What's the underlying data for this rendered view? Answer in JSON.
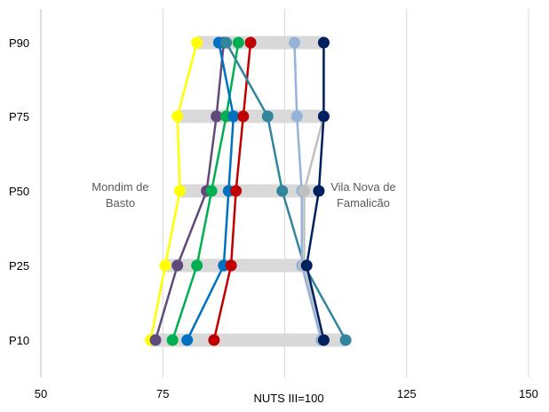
{
  "chart_data": {
    "type": "scatter",
    "title": "",
    "xlabel": "NUTS III=100",
    "ylabel": "",
    "xlim": [
      50,
      150
    ],
    "x_ticks": [
      50,
      75,
      125,
      150
    ],
    "x_gridlines": [
      50,
      75,
      100,
      125,
      150
    ],
    "y_categories": [
      "P10",
      "P25",
      "P50",
      "P75",
      "P90"
    ],
    "grid": true,
    "legend": "none",
    "annotations": [
      {
        "lines": [
          "Mondim de",
          "Basto"
        ],
        "anchor_series_index": 0
      },
      {
        "lines": [
          "Vila Nova de",
          "Famalicão"
        ],
        "anchor_series_index": 8
      }
    ],
    "series": [
      {
        "color": "#FFFF00",
        "values": [
          72.5,
          75.5,
          78.5,
          78,
          82
        ]
      },
      {
        "color": "#604A7B",
        "values": [
          73.5,
          78,
          84,
          86,
          87.5
        ]
      },
      {
        "color": "#00B050",
        "values": [
          77,
          82,
          85,
          88,
          90.5
        ]
      },
      {
        "color": "#0070C0",
        "values": [
          80,
          87.5,
          88.5,
          89.5,
          86.5
        ]
      },
      {
        "color": "#C00000",
        "values": [
          85.5,
          89,
          90,
          91.5,
          93
        ]
      },
      {
        "color": "#31859C",
        "values": [
          112.5,
          104,
          99.5,
          96.5,
          88
        ]
      },
      {
        "color": "#95B3D7",
        "values": [
          107.5,
          103.5,
          103.5,
          102.5,
          102
        ]
      },
      {
        "color": "#C0C0C0",
        "values": [
          108,
          104,
          104,
          108,
          108
        ]
      },
      {
        "color": "#002060",
        "values": [
          108,
          104.5,
          107,
          108,
          108
        ]
      }
    ]
  }
}
